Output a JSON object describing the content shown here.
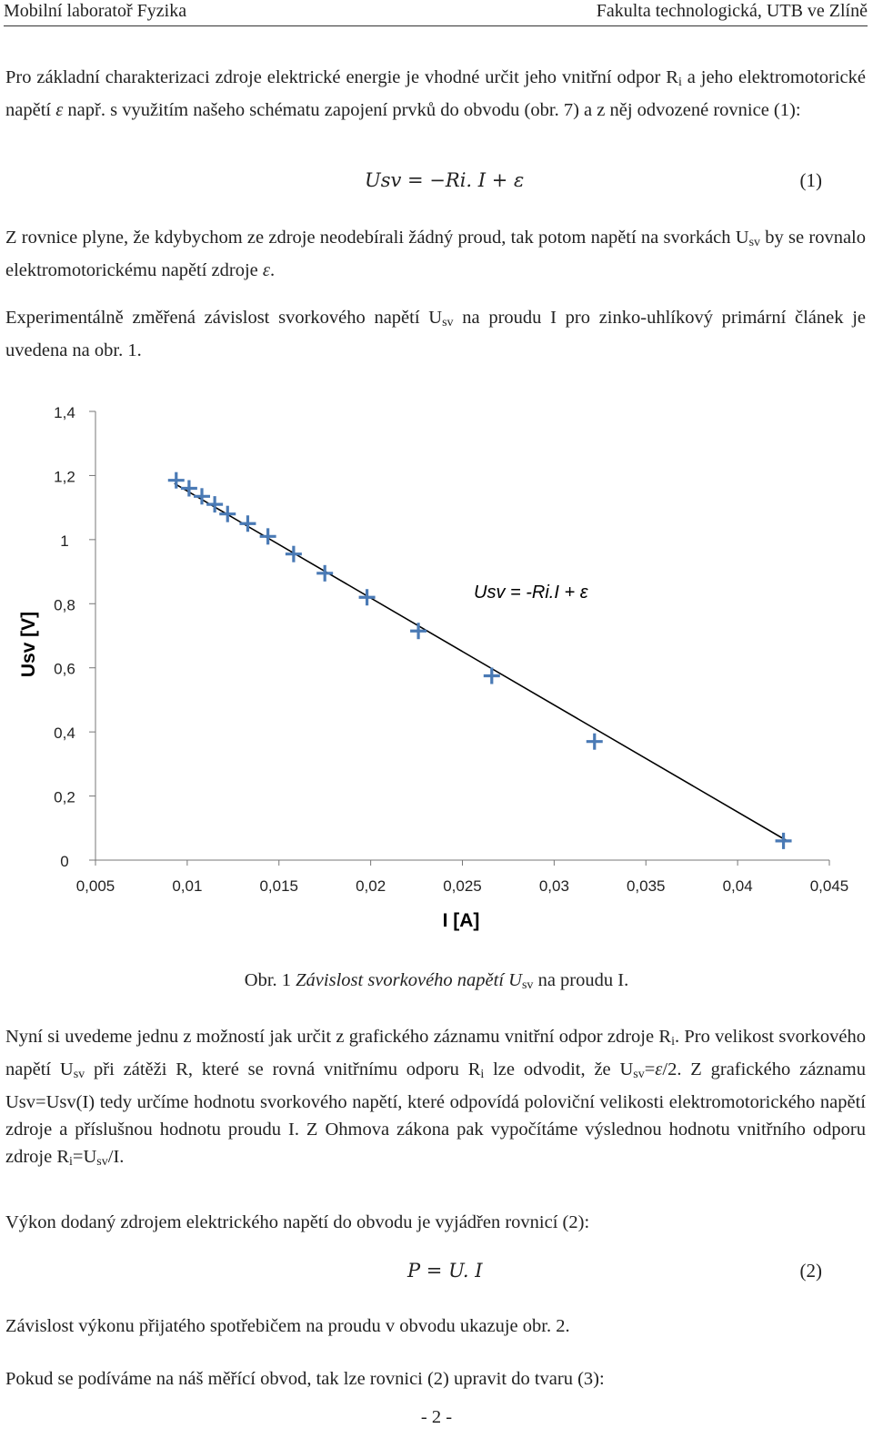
{
  "header": {
    "left": "Mobilní laboratoř Fyzika",
    "right": "Fakulta technologická, UTB ve Zlíně"
  },
  "intro": {
    "t1": "Pro základní charakterizaci zdroje elektrické energie je vhodné určit jeho vnitřní odpor R",
    "sub1": "i",
    "t2": " a jeho elektromotorické napětí ",
    "eps": "ε",
    "t3": " např. s využitím našeho schématu zapojení prvků do obvodu (obr. 7) a z něj odvozené rovnice (1):"
  },
  "equation1": {
    "formula": "Usv = −Ri. I + ε",
    "number": "(1)"
  },
  "para2": {
    "t1": "Z rovnice plyne, že kdybychom ze zdroje neodebírali žádný proud, tak potom napětí na svorkách U",
    "sub1": "sv",
    "t2": " by se rovnalo elektromotorickému napětí zdroje ",
    "eps": "ε",
    "t3": "."
  },
  "para3": {
    "t1": "Experimentálně změřená závislost svorkového napětí U",
    "sub1": "sv",
    "t2": " na proudu I pro zinko-uhlíkový primární článek je uvedena na obr. 1."
  },
  "chart_data": {
    "type": "scatter",
    "xlabel": "I [A]",
    "ylabel": "Usv [V]",
    "xlim": [
      0.005,
      0.045
    ],
    "ylim": [
      0,
      1.4
    ],
    "x_ticks": [
      "0,005",
      "0,01",
      "0,015",
      "0,02",
      "0,025",
      "0,03",
      "0,035",
      "0,04",
      "0,045"
    ],
    "y_ticks": [
      "0",
      "0,2",
      "0,4",
      "0,6",
      "0,8",
      "1",
      "1,2",
      "1,4"
    ],
    "annotation": "Usv = -Ri.I + ε",
    "series": [
      {
        "x": [
          0.0094,
          0.0101,
          0.0108,
          0.0115,
          0.0122,
          0.0133,
          0.0144,
          0.0158,
          0.0175,
          0.0198,
          0.0226,
          0.0266,
          0.0322,
          0.0425
        ],
        "y": [
          1.185,
          1.16,
          1.135,
          1.11,
          1.08,
          1.05,
          1.01,
          0.955,
          0.895,
          0.82,
          0.715,
          0.575,
          0.37,
          0.06
        ]
      }
    ],
    "fit_line": {
      "x": [
        0.0093,
        0.0427
      ],
      "y": [
        1.175,
        0.06
      ]
    },
    "marker_color": "#4a7ab5",
    "line_color": "#000000",
    "grid": false
  },
  "caption": {
    "t1": "Obr. 1 ",
    "italic": "Závislost svorkového napětí U",
    "sub": "sv",
    "t2": " na proudu I."
  },
  "para4": {
    "s1a": "Nyní si uvedeme jednu z možností jak určit z grafického záznamu vnitřní odpor zdroje R",
    "s1sub": "i",
    "s1b": ". Pro velikost svorkového napětí U",
    "s2sub": "sv",
    "s2b": " při zátěži R, které se rovná vnitřnímu odporu R",
    "s3sub": "i",
    "s3b": " lze odvodit, že U",
    "s4sub": "sv",
    "s4b": "=",
    "eps": "ε",
    "s4c": "/2. Z grafického záznamu Usv=Usv(I) tedy určíme hodnotu svorkového napětí, které odpovídá poloviční velikosti elektromotorického napětí zdroje a příslušnou hodnotu proudu I. Z Ohmova zákona pak vypočítáme výslednou hodnotu vnitřního odporu zdroje R",
    "s5sub": "i",
    "s5b": "=U",
    "s6sub": "sv",
    "s6b": "/I."
  },
  "para5": "Výkon dodaný zdrojem elektrického napětí do obvodu je vyjádřen rovnicí (2):",
  "equation2": {
    "formula": "P = U. I",
    "number": "(2)"
  },
  "para6": "Závislost výkonu přijatého spotřebičem na proudu v obvodu ukazuje obr. 2.",
  "para7": "Pokud se podíváme na náš měřící obvod, tak lze rovnici (2) upravit do tvaru (3):",
  "page_number": "- 2 -"
}
